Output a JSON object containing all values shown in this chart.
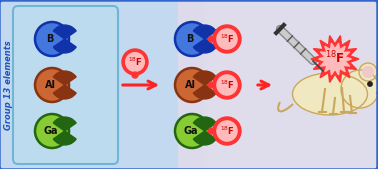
{
  "bg_color": "#c8dcf0",
  "border_color": "#3366cc",
  "fig_width": 3.78,
  "fig_height": 1.69,
  "title": "Group 13 elements",
  "elements": [
    "B",
    "Al",
    "Ga"
  ],
  "element_colors": [
    "#4477dd",
    "#cc6633",
    "#88cc33"
  ],
  "element_dark_colors": [
    "#1133aa",
    "#883311",
    "#226611"
  ],
  "f18_color": "#ff3333",
  "f18_light": "#ffbbbb",
  "f18_text": "#cc0000",
  "arrow_color": "#ff2222",
  "box_color": "#bbddef",
  "box_border": "#55aacc",
  "left_bg": "#b8d8f0",
  "right_bg": "#f0d8e8",
  "mouse_body": "#f0e8c0",
  "mouse_outline": "#c8a860"
}
